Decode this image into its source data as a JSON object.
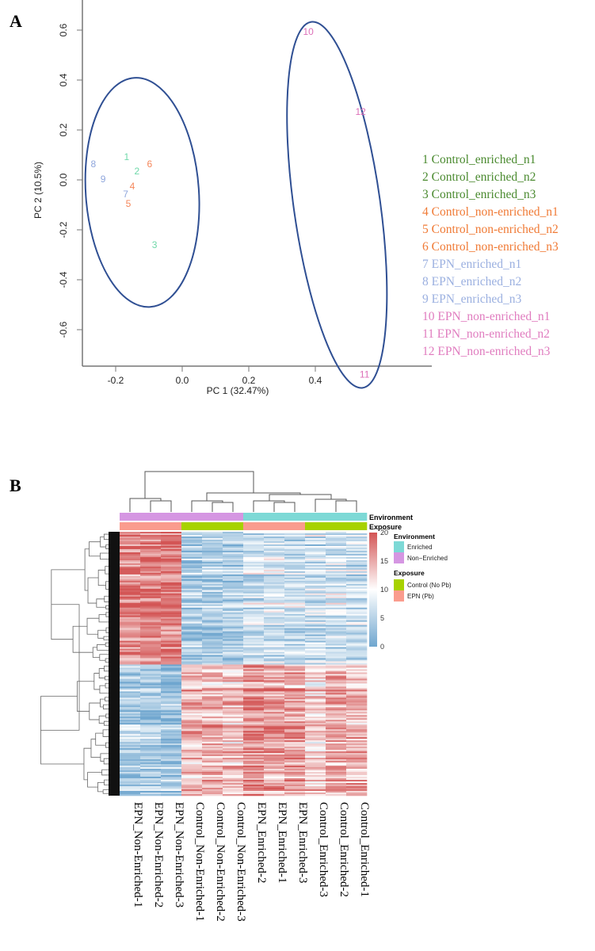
{
  "chart_data": [
    {
      "panel": "A",
      "type": "scatter",
      "xlabel": "PC 1 (32.47%)",
      "ylabel": "PC 2 (10.5%)",
      "xlim": [
        -0.3,
        0.56
      ],
      "ylim": [
        -0.75,
        0.64
      ],
      "xticks": [
        "-0.2",
        "0.0",
        "0.2",
        "0.4"
      ],
      "xtick_values": [
        -0.2,
        0.0,
        0.2,
        0.4
      ],
      "yticks": [
        "0.6",
        "0.4",
        "0.2",
        "0.0",
        "-0.2",
        "-0.4",
        "-0.6"
      ],
      "ytick_values": [
        0.6,
        0.4,
        0.2,
        0.0,
        -0.2,
        -0.4,
        -0.6
      ],
      "legend_position": "right",
      "points": [
        {
          "label": "1",
          "x": -0.167,
          "y": 0.092,
          "group": 0
        },
        {
          "label": "2",
          "x": -0.136,
          "y": 0.035,
          "group": 0
        },
        {
          "label": "3",
          "x": -0.083,
          "y": -0.26,
          "group": 0
        },
        {
          "label": "4",
          "x": -0.15,
          "y": -0.025,
          "group": 1
        },
        {
          "label": "5",
          "x": -0.162,
          "y": -0.095,
          "group": 1
        },
        {
          "label": "6",
          "x": -0.098,
          "y": 0.063,
          "group": 1
        },
        {
          "label": "7",
          "x": -0.17,
          "y": -0.057,
          "group": 2
        },
        {
          "label": "8",
          "x": -0.267,
          "y": 0.063,
          "group": 2
        },
        {
          "label": "9",
          "x": -0.238,
          "y": 0.003,
          "group": 2
        },
        {
          "label": "10",
          "x": 0.379,
          "y": 0.594,
          "group": 3
        },
        {
          "label": "11",
          "x": 0.548,
          "y": -0.78,
          "group": 3
        },
        {
          "label": "12",
          "x": 0.536,
          "y": 0.273,
          "group": 3
        }
      ],
      "groups": [
        {
          "point_color": "#6fd8a9",
          "legend_color": "#4a8a2f"
        },
        {
          "point_color": "#f5865a",
          "legend_color": "#f07a35"
        },
        {
          "point_color": "#8fa6dc",
          "legend_color": "#9bb0e0"
        },
        {
          "point_color": "#dd6fb8",
          "legend_color": "#e07cbf"
        }
      ],
      "legend": [
        "1 Control_enriched_n1",
        "2 Control_enriched_n2",
        "3 Control_enriched_n3",
        "4 Control_non-enriched_n1",
        "5 Control_non-enriched_n2",
        "6 Control_non-enriched_n3",
        "7 EPN_enriched_n1",
        "8 EPN_enriched_n2",
        "9 EPN_enriched_n3",
        "10 EPN_non-enriched_n1",
        "11 EPN_non-enriched_n2",
        "12 EPN_non-enriched_n3"
      ],
      "legend_groups": [
        0,
        0,
        0,
        1,
        1,
        1,
        2,
        2,
        2,
        3,
        3,
        3
      ],
      "ellipses": [
        {
          "cx": -0.12,
          "cy": -0.05,
          "rx": 0.17,
          "ry": 0.46,
          "angle": -4
        },
        {
          "cx": 0.465,
          "cy": -0.1,
          "rx": 0.13,
          "ry": 0.74,
          "angle": -8
        }
      ],
      "ellipse_color": "#2f4f93"
    },
    {
      "panel": "B",
      "type": "heatmap",
      "columns": [
        "EPN_Non-Enriched-1",
        "EPN_Non-Enriched-2",
        "EPN_Non-Enriched-3",
        "Control_Non-Enriched-1",
        "Control_Non-Enriched-2",
        "Control_Non-Enriched-3",
        "EPN_Enriched-2",
        "EPN_Enriched-1",
        "EPN_Enriched-3",
        "Control_Enriched-3",
        "Control_Enriched-2",
        "Control_Enriched-1"
      ],
      "environment": [
        "Non-Enriched",
        "Non-Enriched",
        "Non-Enriched",
        "Non-Enriched",
        "Non-Enriched",
        "Non-Enriched",
        "Enriched",
        "Enriched",
        "Enriched",
        "Enriched",
        "Enriched",
        "Enriched"
      ],
      "exposure": [
        "EPN (Pb)",
        "EPN (Pb)",
        "EPN (Pb)",
        "Control (No Pb)",
        "Control (No Pb)",
        "Control (No Pb)",
        "EPN (Pb)",
        "EPN (Pb)",
        "EPN (Pb)",
        "Control (No Pb)",
        "Control (No Pb)",
        "Control (No Pb)"
      ],
      "row_clusters": [
        {
          "name": "upper",
          "share": 0.5,
          "column_means": [
            17.5,
            17,
            17.5,
            4,
            4.5,
            4.5,
            6.5,
            7,
            6,
            6.5,
            7,
            6.5
          ]
        },
        {
          "name": "lower",
          "share": 0.5,
          "column_means": [
            4.5,
            4,
            3.5,
            14,
            14.5,
            13.5,
            17,
            15.5,
            15.5,
            12.5,
            15,
            14.5
          ]
        }
      ],
      "color_scale": {
        "min": 0,
        "max": 20,
        "low": "#6fa6cf",
        "mid": "#ffffff",
        "high": "#d35555",
        "ticks": [
          "20",
          "15",
          "10",
          "5",
          "0"
        ],
        "tick_values": [
          20,
          15,
          10,
          5,
          0
        ]
      },
      "annotation_tracks": [
        "Environment",
        "Exposure"
      ],
      "legend": {
        "environment_title": "Environment",
        "environment_items": [
          {
            "label": "Enriched",
            "color": "#7dd9d6"
          },
          {
            "label": "Non−Enriched",
            "color": "#d596e2"
          }
        ],
        "exposure_title": "Exposure",
        "exposure_items": [
          {
            "label": "Control (No Pb)",
            "color": "#a7d200"
          },
          {
            "label": "EPN (Pb)",
            "color": "#fa9c8e"
          }
        ]
      }
    }
  ],
  "panel_labels": {
    "a": "A",
    "b": "B"
  }
}
